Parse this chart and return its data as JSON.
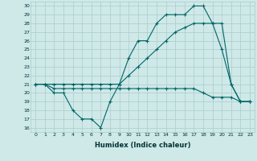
{
  "xlabel": "Humidex (Indice chaleur)",
  "ylabel": "",
  "background_color": "#cfe8e8",
  "grid_color": "#aacccc",
  "line_color": "#006666",
  "xlim": [
    -0.5,
    23.5
  ],
  "ylim": [
    15.5,
    30.5
  ],
  "xticks": [
    0,
    1,
    2,
    3,
    4,
    5,
    6,
    7,
    8,
    9,
    10,
    11,
    12,
    13,
    14,
    15,
    16,
    17,
    18,
    19,
    20,
    21,
    22,
    23
  ],
  "yticks": [
    16,
    17,
    18,
    19,
    20,
    21,
    22,
    23,
    24,
    25,
    26,
    27,
    28,
    29,
    30
  ],
  "line1_x": [
    0,
    1,
    2,
    3,
    4,
    5,
    6,
    7,
    8,
    9,
    10,
    11,
    12,
    13,
    14,
    15,
    16,
    17,
    18,
    19,
    20,
    21,
    22,
    23
  ],
  "line1_y": [
    21,
    21,
    20,
    20,
    18,
    17,
    17,
    16,
    19,
    21,
    24,
    26,
    26,
    28,
    29,
    29,
    29,
    30,
    30,
    28,
    28,
    21,
    19,
    19
  ],
  "line2_x": [
    0,
    1,
    2,
    3,
    4,
    5,
    6,
    7,
    8,
    9,
    10,
    11,
    12,
    13,
    14,
    15,
    16,
    17,
    18,
    19,
    20,
    21,
    22,
    23
  ],
  "line2_y": [
    21,
    21,
    20.5,
    20.5,
    20.5,
    20.5,
    20.5,
    20.5,
    20.5,
    20.5,
    20.5,
    20.5,
    20.5,
    20.5,
    20.5,
    20.5,
    20.5,
    20.5,
    20,
    19.5,
    19.5,
    19.5,
    19,
    19
  ],
  "line3_x": [
    0,
    1,
    2,
    3,
    4,
    5,
    6,
    7,
    8,
    9,
    10,
    11,
    12,
    13,
    14,
    15,
    16,
    17,
    18,
    19,
    20,
    21,
    22,
    23
  ],
  "line3_y": [
    21,
    21,
    21,
    21,
    21,
    21,
    21,
    21,
    21,
    21,
    22,
    23,
    24,
    25,
    26,
    27,
    27.5,
    28,
    28,
    28,
    25,
    21,
    19,
    19
  ]
}
